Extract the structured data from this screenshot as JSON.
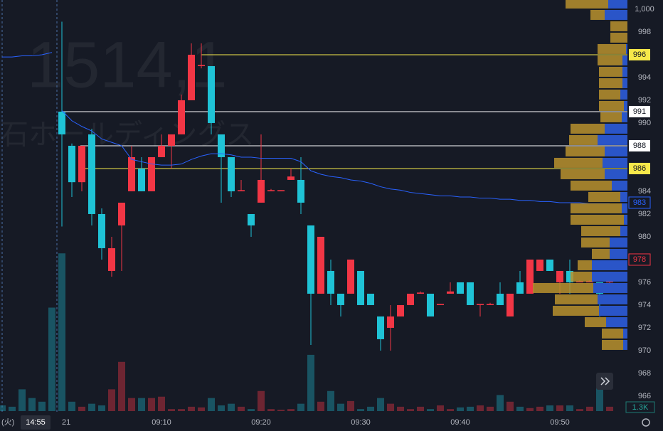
{
  "chart_data": {
    "type": "candlestick",
    "watermark_code": "1514,1",
    "watermark_name": "石ホールディングス",
    "day_label": "(火)",
    "crosshair_time": "14:55",
    "categories": [
      "21",
      null,
      null,
      null,
      null,
      null,
      null,
      null,
      null,
      null,
      "09:10",
      null,
      null,
      null,
      null,
      null,
      null,
      null,
      null,
      null,
      "09:20",
      null,
      null,
      null,
      null,
      null,
      null,
      null,
      null,
      null,
      "09:30",
      null,
      null,
      null,
      null,
      null,
      null,
      null,
      null,
      null,
      "09:40",
      null,
      null,
      null,
      null,
      null,
      null,
      null,
      null,
      null,
      "09:50",
      null,
      null,
      null,
      null,
      null
    ],
    "ylim": [
      964.56,
      1000.81
    ],
    "yticks": [
      {
        "value": 1000,
        "label": "1,000"
      },
      998,
      994,
      992,
      990,
      984,
      982,
      980,
      976,
      974,
      972,
      970,
      968,
      966
    ],
    "up_color": "#f23645",
    "down_color": "#1fc3d6",
    "candles": [
      [
        991,
        998.9,
        980.9,
        989
      ],
      [
        988,
        988.2,
        983.5,
        984.8
      ],
      [
        984.8,
        988,
        984,
        988
      ],
      [
        989,
        989.5,
        981,
        982
      ],
      [
        982,
        982.5,
        978,
        979
      ],
      [
        977,
        980,
        976.5,
        979
      ],
      [
        981,
        983,
        977,
        983
      ],
      [
        984,
        988,
        984,
        987
      ],
      [
        986,
        987,
        984,
        984
      ],
      [
        984,
        987,
        984,
        987
      ],
      [
        987,
        989,
        987,
        988
      ],
      [
        988,
        989,
        986,
        989
      ],
      [
        989,
        992.5,
        989,
        992
      ],
      [
        992,
        997,
        992,
        996
      ],
      [
        995,
        997,
        994.8,
        995.1
      ],
      [
        995,
        995,
        989,
        990
      ],
      [
        989,
        989,
        983,
        987
      ],
      [
        987,
        987,
        983.5,
        984
      ],
      [
        984,
        985,
        984,
        984.1
      ],
      [
        982,
        982,
        980,
        981
      ],
      [
        983,
        989,
        983,
        985
      ],
      [
        984,
        984.2,
        984,
        984.1
      ],
      [
        984,
        984.1,
        984,
        984.1
      ],
      [
        985,
        986,
        985,
        985.3
      ],
      [
        985,
        987,
        982,
        983
      ],
      [
        981,
        981,
        970.5,
        975
      ],
      [
        975,
        980,
        975,
        980
      ],
      [
        977,
        978,
        974,
        975
      ],
      [
        975,
        975,
        973,
        974
      ],
      [
        975,
        978,
        975,
        978
      ],
      [
        977,
        977,
        974,
        974
      ],
      [
        975,
        975,
        974,
        974
      ],
      [
        973,
        973,
        970,
        971
      ],
      [
        972,
        974,
        970,
        973
      ],
      [
        973,
        974,
        973,
        974
      ],
      [
        974,
        975,
        974,
        975
      ],
      [
        975,
        975.2,
        975,
        975.1
      ],
      [
        975,
        975,
        973,
        973
      ],
      [
        974,
        974.1,
        974,
        974.1
      ],
      [
        975,
        976,
        975,
        975.2
      ],
      [
        976,
        976,
        975,
        975
      ],
      [
        976,
        976,
        974,
        974
      ],
      [
        974,
        974.1,
        973,
        974.1
      ],
      [
        974,
        974.2,
        974,
        974.1
      ],
      [
        975,
        976,
        974,
        974
      ],
      [
        973,
        975,
        973,
        975
      ],
      [
        976,
        977,
        975,
        975
      ],
      [
        975,
        978,
        975,
        978
      ],
      [
        977,
        978,
        977,
        978
      ],
      [
        978,
        978,
        977,
        977
      ],
      [
        976,
        977,
        975,
        977
      ],
      [
        977,
        978,
        975,
        976
      ],
      [
        976,
        976.2,
        976,
        976.1
      ],
      [
        976,
        976.2,
        976,
        976.1
      ],
      [
        976,
        976,
        973,
        975
      ],
      [
        976,
        976.1,
        975.9,
        976.1
      ]
    ],
    "vwap": {
      "color": "#2962ff",
      "values": [
        991.1,
        990.2,
        989.7,
        989.3,
        988.6,
        988.3,
        988.0,
        986.8,
        986.6,
        986.4,
        986.3,
        986.3,
        986.4,
        986.8,
        987.1,
        987.3,
        987.3,
        987.2,
        987.0,
        987.0,
        986.9,
        986.9,
        986.9,
        986.9,
        986.6,
        985.8,
        985.5,
        985.3,
        985.2,
        985.0,
        984.9,
        984.7,
        984.4,
        984.2,
        984.1,
        983.9,
        983.8,
        983.7,
        983.6,
        983.6,
        983.5,
        983.5,
        983.4,
        983.4,
        983.3,
        983.3,
        983.2,
        983.2,
        983.1,
        983.1,
        983.0,
        983.0,
        983.0,
        982.9,
        982.9,
        982.9
      ],
      "prev_values": [
        995.8,
        995.8,
        995.9,
        995.9,
        996,
        996.2
      ]
    },
    "volume": {
      "ylim": [
        0,
        48000
      ],
      "values": [
        47100,
        2800,
        1300,
        2200,
        1700,
        6500,
        14700,
        3900,
        3900,
        3900,
        4300,
        600,
        600,
        1300,
        1100,
        3900,
        1700,
        2200,
        1300,
        600,
        6000,
        600,
        400,
        600,
        2200,
        16800,
        2800,
        6000,
        2200,
        3000,
        600,
        1300,
        3900,
        2200,
        1300,
        600,
        1300,
        600,
        1700,
        600,
        1100,
        1300,
        1700,
        1300,
        4800,
        2800,
        1300,
        900,
        1300,
        1700,
        1700,
        1700,
        600,
        1300,
        7100,
        1300
      ],
      "prev_values": [
        1700,
        1300,
        6500,
        3900,
        2800,
        30900
      ],
      "last_label": "1.3K"
    },
    "price_lines": [
      {
        "value": 996,
        "color": "#f7e94a"
      },
      {
        "value": 991,
        "color": "#ffffff"
      },
      {
        "value": 988,
        "color": "#ffffff"
      },
      {
        "value": 986,
        "color": "#f7e94a"
      }
    ],
    "markers": [
      {
        "value": 983,
        "color": "#2962ff"
      },
      {
        "value": 978,
        "color": "#f23645"
      }
    ],
    "depth": {
      "ask_color": "#b8922e",
      "bid_color": "#2a55c8",
      "levels": [
        {
          "price": 1000.5,
          "ask": 6000,
          "bid": 2700
        },
        {
          "price": 999.5,
          "ask": 2000,
          "bid": 3200
        },
        {
          "price": 998.5,
          "ask": 2400,
          "bid": 0
        },
        {
          "price": 997.5,
          "ask": 2400,
          "bid": 0
        },
        {
          "price": 996.5,
          "ask": 4000,
          "bid": 200
        },
        {
          "price": 995.5,
          "ask": 3500,
          "bid": 700
        },
        {
          "price": 994.5,
          "ask": 3300,
          "bid": 700
        },
        {
          "price": 993.5,
          "ask": 3300,
          "bid": 700
        },
        {
          "price": 992.5,
          "ask": 3000,
          "bid": 1000
        },
        {
          "price": 991.5,
          "ask": 3500,
          "bid": 500
        },
        {
          "price": 990.5,
          "ask": 3000,
          "bid": 800
        },
        {
          "price": 989.5,
          "ask": 4800,
          "bid": 3200
        },
        {
          "price": 988.5,
          "ask": 4000,
          "bid": 4200
        },
        {
          "price": 987.5,
          "ask": 5500,
          "bid": 3200
        },
        {
          "price": 986.5,
          "ask": 6800,
          "bid": 3500
        },
        {
          "price": 985.5,
          "ask": 6200,
          "bid": 3200
        },
        {
          "price": 984.5,
          "ask": 5800,
          "bid": 2200
        },
        {
          "price": 983.5,
          "ask": 4500,
          "bid": 1000
        },
        {
          "price": 982.5,
          "ask": 7200,
          "bid": 800
        },
        {
          "price": 981.5,
          "ask": 7500,
          "bid": 500
        },
        {
          "price": 980.5,
          "ask": 5500,
          "bid": 1000
        },
        {
          "price": 979.5,
          "ask": 4000,
          "bid": 2500
        },
        {
          "price": 978.5,
          "ask": 2500,
          "bid": 2500
        },
        {
          "price": 977.5,
          "ask": 2000,
          "bid": 5000
        },
        {
          "price": 976.5,
          "ask": 3000,
          "bid": 5000
        },
        {
          "price": 975.5,
          "ask": 8500,
          "bid": 4800
        },
        {
          "price": 974.5,
          "ask": 6000,
          "bid": 4200
        },
        {
          "price": 973.5,
          "ask": 6500,
          "bid": 4000
        },
        {
          "price": 972.5,
          "ask": 3000,
          "bid": 3000
        },
        {
          "price": 971.5,
          "ask": 3000,
          "bid": 600
        },
        {
          "price": 970.5,
          "ask": 3000,
          "bid": 600
        }
      ]
    }
  }
}
